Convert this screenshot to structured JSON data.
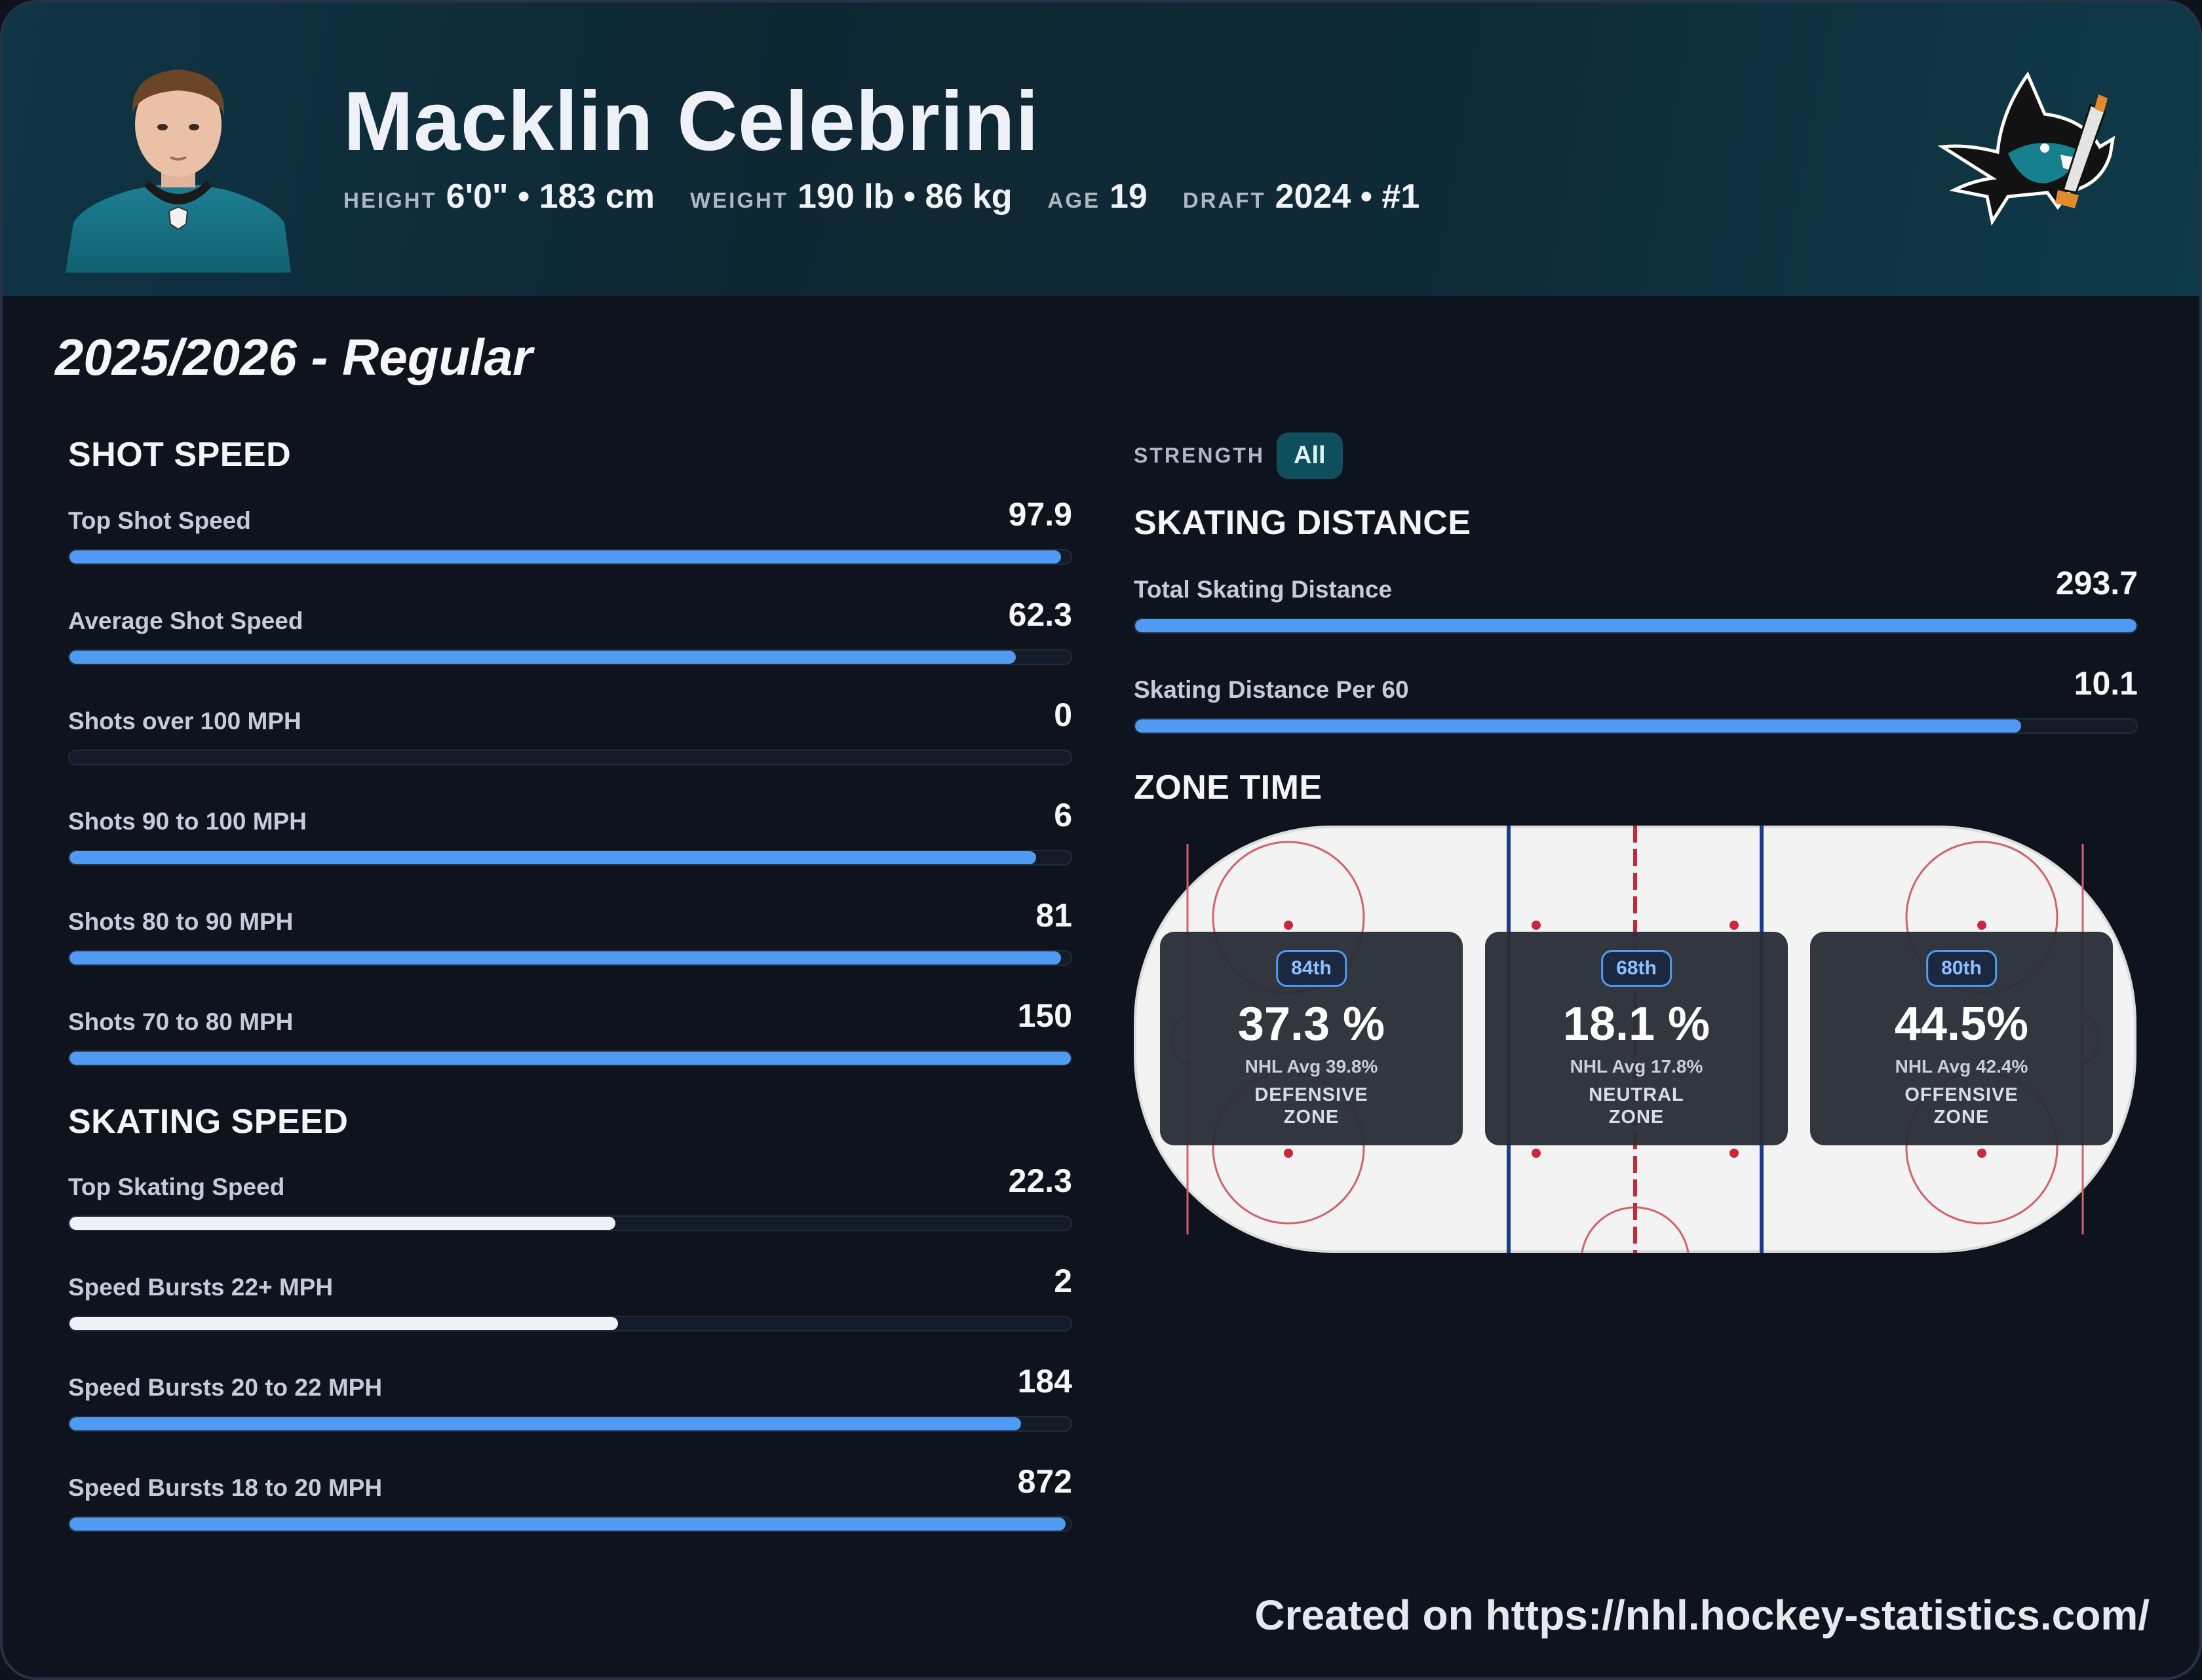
{
  "player": {
    "name": "Macklin Celebrini",
    "bio": [
      {
        "label": "HEIGHT",
        "value": "6'0\" • 183 cm"
      },
      {
        "label": "WEIGHT",
        "value": "190 lb • 86 kg"
      },
      {
        "label": "AGE",
        "value": "19"
      },
      {
        "label": "DRAFT",
        "value": "2024 • #1"
      }
    ]
  },
  "season_label": "2025/2026 - Regular",
  "shot_speed": {
    "title": "SHOT SPEED",
    "stats": [
      {
        "label": "Top Shot Speed",
        "value": "97.9",
        "fill": 0.99
      },
      {
        "label": "Average Shot Speed",
        "value": "62.3",
        "fill": 0.945
      },
      {
        "label": "Shots over 100 MPH",
        "value": "0",
        "fill": 0
      },
      {
        "label": "Shots 90 to 100 MPH",
        "value": "6",
        "fill": 0.965
      },
      {
        "label": "Shots 80 to 90 MPH",
        "value": "81",
        "fill": 0.99
      },
      {
        "label": "Shots 70 to 80 MPH",
        "value": "150",
        "fill": 1.0
      }
    ]
  },
  "skating_speed": {
    "title": "SKATING SPEED",
    "stats": [
      {
        "label": "Top Skating Speed",
        "value": "22.3",
        "fill": 0.545,
        "style": "white"
      },
      {
        "label": "Speed Bursts 22+ MPH",
        "value": "2",
        "fill": 0.548,
        "style": "white"
      },
      {
        "label": "Speed Bursts 20 to 22 MPH",
        "value": "184",
        "fill": 0.95
      },
      {
        "label": "Speed Bursts 18 to 20 MPH",
        "value": "872",
        "fill": 0.995
      }
    ]
  },
  "strength": {
    "label": "STRENGTH",
    "selected": "All"
  },
  "skating_distance": {
    "title": "SKATING DISTANCE",
    "stats": [
      {
        "label": "Total Skating Distance",
        "value": "293.7",
        "fill": 1.0
      },
      {
        "label": "Skating Distance Per 60",
        "value": "10.1",
        "fill": 0.885
      }
    ]
  },
  "zone_time": {
    "title": "ZONE TIME",
    "zones": [
      {
        "percentile": "84th",
        "pct": "37.3 %",
        "avg": "NHL Avg 39.8%",
        "name": "DEFENSIVE\nZONE"
      },
      {
        "percentile": "68th",
        "pct": "18.1  %",
        "avg": "NHL Avg 17.8%",
        "name": "NEUTRAL\nZONE"
      },
      {
        "percentile": "80th",
        "pct": "44.5%",
        "avg": "NHL Avg 42.4%",
        "name": "OFFENSIVE\nZONE"
      }
    ]
  },
  "colors": {
    "bar_blue": "#4f9af2",
    "bar_white": "#eef1f6",
    "accent_teal": "#0f4e5c",
    "rink_blue_line": "#1a3a8a",
    "rink_red_line": "#c8283c"
  },
  "icons": {
    "team_logo": "sharks-logo",
    "headshot": "player-headshot"
  },
  "footer": "Created on https://nhl.hockey-statistics.com/"
}
